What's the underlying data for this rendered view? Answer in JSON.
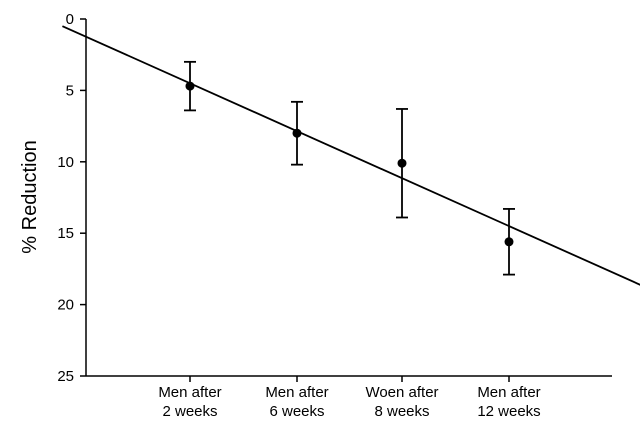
{
  "chart_data": {
    "type": "scatter",
    "title": "",
    "xlabel": "",
    "ylabel": "% Reduction",
    "y_axis_inverted": true,
    "ylim": [
      0,
      25
    ],
    "yticks": [
      "0",
      "5",
      "10",
      "15",
      "20",
      "25"
    ],
    "grid": false,
    "legend": "none",
    "categories": [
      [
        "Men after",
        "2 weeks"
      ],
      [
        "Men after",
        "6 weeks"
      ],
      [
        "Woen after",
        "8 weeks"
      ],
      [
        "Men after",
        "12 weeks"
      ]
    ],
    "x_weeks": [
      2,
      6,
      8,
      12
    ],
    "values": [
      4.7,
      8.0,
      10.1,
      15.6
    ],
    "error_low": [
      6.4,
      10.2,
      13.9,
      17.9
    ],
    "error_high": [
      3.0,
      5.8,
      6.3,
      13.3
    ],
    "trend_line": {
      "slope_per_week": 1.0,
      "intercept": 2.5
    },
    "x_week_range": [
      -2,
      17.35
    ],
    "colors": {
      "marks": "#000000",
      "background": "#ffffff"
    }
  }
}
